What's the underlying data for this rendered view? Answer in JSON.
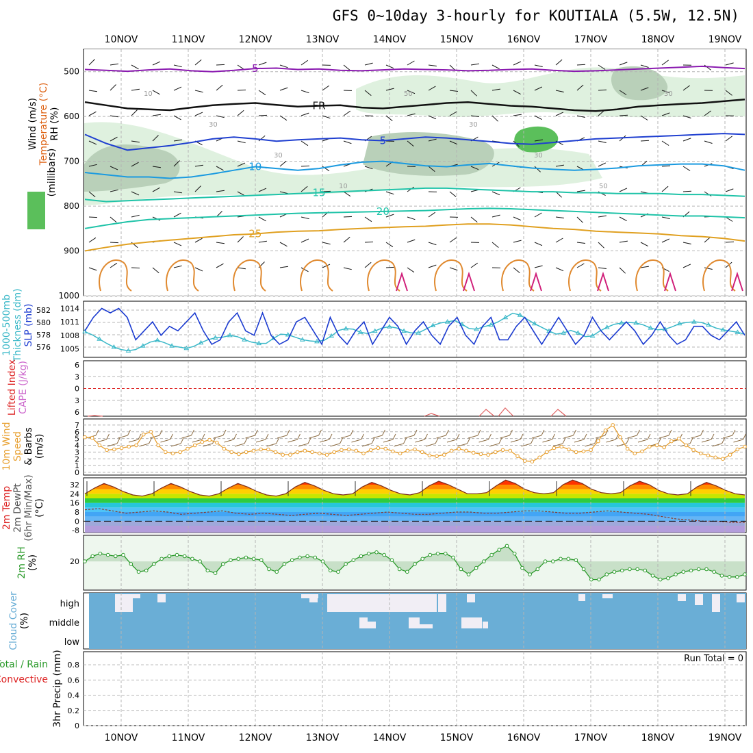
{
  "chart_data": {
    "type": "meteogram",
    "title": "GFS 0~10day 3-hourly for KOUTIALA (5.5W, 12.5N)",
    "dates": [
      "10NOV",
      "11NOV",
      "12NOV",
      "13NOV",
      "14NOV",
      "15NOV",
      "16NOV",
      "17NOV",
      "18NOV",
      "19NOV"
    ],
    "colors": {
      "grid": "#b4b4b4",
      "temp_blue": "#1f3fd0",
      "temp_cyan": "#1a9ae0",
      "temp_teal": "#1fc3a8",
      "temp_orange": "#e0a020",
      "temp_purple": "#8a1ab0",
      "thickness": "#3ab8c8",
      "slp": "#1a3ad0",
      "wind_speed": "#e8a030",
      "rh": "#2a9a2a",
      "cloud": "#6aaed6",
      "lifted": "#dd2222"
    },
    "panels": [
      {
        "id": "upper_air",
        "labels": [
          {
            "text": "Wind (m/s)",
            "color": "#000000"
          },
          {
            "text": "Temperature (°C)",
            "color": "#dd6010"
          },
          {
            "text": "RH (%)",
            "color": "#000000"
          },
          {
            "text": "(millibars)",
            "color": "#000000"
          }
        ],
        "yticks": [
          "500",
          "600",
          "700",
          "800",
          "900",
          "1000"
        ],
        "ylim": [
          1000,
          450
        ],
        "contours": [
          {
            "label": "5",
            "color": "#8a1ab0",
            "values": [
              495,
              497,
              499,
              496,
              494,
              498,
              500,
              497,
              493,
              492,
              495,
              494,
              497,
              498,
              496,
              494,
              495,
              496,
              498,
              497,
              495,
              494,
              497,
              499,
              498,
              496,
              494,
              492,
              490,
              488,
              491,
              493
            ]
          },
          {
            "label": "FR",
            "color": "#111111",
            "values": [
              568,
              575,
              582,
              584,
              586,
              580,
              575,
              572,
              570,
              574,
              578,
              576,
              575,
              580,
              582,
              578,
              574,
              570,
              568,
              572,
              576,
              578,
              582,
              586,
              588,
              584,
              578,
              575,
              572,
              570,
              566,
              562
            ]
          },
          {
            "label": "5",
            "color": "#1f3fd0",
            "values": [
              640,
              660,
              675,
              670,
              665,
              658,
              650,
              646,
              650,
              655,
              652,
              650,
              648,
              652,
              654,
              650,
              646,
              648,
              652,
              656,
              660,
              662,
              658,
              654,
              650,
              648,
              646,
              644,
              642,
              640,
              638,
              640
            ]
          },
          {
            "label": "10",
            "color": "#1a9ae0",
            "values": [
              725,
              730,
              735,
              735,
              738,
              735,
              728,
              720,
              712,
              716,
              720,
              716,
              708,
              702,
              700,
              705,
              710,
              712,
              708,
              705,
              710,
              715,
              718,
              720,
              718,
              715,
              710,
              708,
              706,
              706,
              710,
              720
            ]
          },
          {
            "label": "15",
            "color": "#1fc3a8",
            "values": [
              785,
              790,
              788,
              786,
              784,
              782,
              780,
              778,
              776,
              774,
              772,
              770,
              768,
              766,
              764,
              762,
              760,
              760,
              762,
              764,
              766,
              768,
              768,
              770,
              770,
              772,
              772,
              772,
              774,
              774,
              776,
              778
            ]
          },
          {
            "label": "20",
            "color": "#1fc3a8",
            "values": [
              850,
              842,
              835,
              830,
              828,
              826,
              824,
              822,
              820,
              818,
              816,
              815,
              814,
              813,
              812,
              811,
              810,
              808,
              806,
              805,
              806,
              808,
              810,
              812,
              814,
              816,
              818,
              820,
              822,
              822,
              824,
              826
            ]
          },
          {
            "label": "25",
            "color": "#e0a020",
            "values": [
              900,
              892,
              885,
              880,
              876,
              872,
              868,
              864,
              862,
              858,
              856,
              855,
              852,
              850,
              848,
              846,
              845,
              842,
              840,
              840,
              842,
              846,
              850,
              852,
              856,
              858,
              860,
              862,
              866,
              868,
              872,
              878
            ]
          }
        ],
        "contour_labels": [
          "10",
          "30",
          "30",
          "10",
          "50",
          "30",
          "30",
          "50",
          "30"
        ]
      },
      {
        "id": "slp_thickness",
        "labels": [
          {
            "text": "1000-500mb",
            "color": "#3ab8c8"
          },
          {
            "text": "Thickness (dm)",
            "color": "#3ab8c8"
          },
          {
            "text": "SLP (mb)",
            "color": "#1a3ad0"
          }
        ],
        "left_ticks": [
          "582",
          "580",
          "578",
          "576"
        ],
        "right_ticks": [
          "1014",
          "1011",
          "1008",
          "1005"
        ],
        "slp": [
          1009,
          1012,
          1014,
          1013,
          1014,
          1012,
          1007,
          1009,
          1011,
          1008,
          1010,
          1009,
          1011,
          1013,
          1009,
          1006,
          1007,
          1011,
          1013,
          1009,
          1008,
          1013,
          1008,
          1006,
          1007,
          1011,
          1012,
          1009,
          1006,
          1012,
          1008,
          1006,
          1009,
          1011,
          1006,
          1009,
          1012,
          1010,
          1006,
          1009,
          1011,
          1008,
          1006,
          1010,
          1012,
          1008,
          1006,
          1010,
          1012,
          1007,
          1007,
          1010,
          1012,
          1009,
          1006,
          1009,
          1012,
          1009,
          1006,
          1008,
          1012,
          1009,
          1007,
          1009,
          1011,
          1009,
          1006,
          1008,
          1011,
          1008,
          1006,
          1007,
          1010,
          1010,
          1008,
          1007,
          1009,
          1011,
          1008
        ],
        "thickness": [
          578.5,
          578,
          577.3,
          576.6,
          576,
          575.6,
          575.4,
          575.6,
          576.2,
          576.8,
          577.1,
          576.7,
          576.2,
          576,
          575.8,
          576.1,
          576.7,
          577.2,
          577.5,
          577.6,
          577.9,
          577.7,
          577.2,
          576.8,
          576.6,
          576.6,
          577.4,
          578.1,
          578,
          577.6,
          577.2,
          577,
          576.9,
          577.1,
          577.8,
          578.7,
          579,
          578.9,
          578.4,
          578.2,
          578.6,
          579.1,
          579.3,
          579.1,
          578.6,
          578.3,
          578.3,
          578.9,
          579.5,
          579.9,
          580.1,
          580.3,
          579.7,
          579,
          578.9,
          579.3,
          579.6,
          580.1,
          580.8,
          581.5,
          581.2,
          580.5,
          579.8,
          579.2,
          578.6,
          578.1,
          578.3,
          578.7,
          578.3,
          577.7,
          577.8,
          578.6,
          579.2,
          579.7,
          579.9,
          580,
          579.9,
          579.6,
          579.1,
          578.8,
          578.9,
          579.3,
          579.8,
          580,
          580.1,
          580,
          579.6,
          579.1,
          578.8,
          578.6,
          578.4,
          578.1
        ]
      },
      {
        "id": "cape_li",
        "labels": [
          {
            "text": "Lifted Index",
            "color": "#dd2222"
          },
          {
            "text": "CAPE (J/kg)",
            "color": "#cc66cc"
          }
        ],
        "ticks": [
          "6",
          "3",
          "0",
          "3",
          "6"
        ]
      },
      {
        "id": "wind10m",
        "labels": [
          {
            "text": "10m Wind",
            "color": "#e8a030"
          },
          {
            "text": "Speed",
            "color": "#e8a030"
          },
          {
            "text": "& Barbs",
            "color": "#000000"
          },
          {
            "text": "(m/s)",
            "color": "#000000"
          }
        ],
        "yticks": [
          "7",
          "6",
          "5",
          "4",
          "3",
          "2",
          "1",
          "0"
        ],
        "ylim": [
          0,
          7.5
        ],
        "values": [
          5.2,
          5.1,
          4.0,
          3.3,
          3.4,
          3.6,
          3.8,
          4.0,
          5.6,
          6.0,
          4.0,
          3.0,
          2.8,
          3.0,
          3.5,
          4.0,
          4.5,
          4.8,
          4.4,
          3.5,
          3.0,
          2.7,
          3.0,
          3.2,
          3.4,
          3.4,
          3.0,
          2.6,
          2.6,
          3.0,
          3.2,
          3.0,
          2.8,
          2.6,
          3.0,
          3.3,
          3.4,
          3.2,
          2.8,
          3.3,
          3.6,
          3.5,
          3.1,
          2.8,
          3.2,
          3.4,
          3.0,
          2.5,
          2.4,
          2.6,
          3.2,
          3.5,
          3.2,
          2.9,
          2.7,
          2.6,
          3.0,
          3.3,
          3.2,
          2.4,
          1.7,
          1.6,
          2.2,
          3.0,
          3.6,
          3.8,
          3.4,
          3.0,
          3.1,
          3.3,
          4.6,
          6.2,
          7.0,
          5.2,
          3.5,
          2.8,
          3.1,
          3.8,
          4.0,
          3.7,
          4.6,
          5.0,
          4.0,
          3.3,
          2.8,
          2.5,
          2.2,
          2.0,
          2.6,
          3.4,
          3.8
        ]
      },
      {
        "id": "temp2m",
        "labels": [
          {
            "text": "2m Temp",
            "color": "#dd2222"
          },
          {
            "text": "2m DewPt",
            "color": "#555555"
          },
          {
            "text": "(6hr Min/Max)",
            "color": "#555555"
          },
          {
            "text": "(°C)",
            "color": "#000000"
          }
        ],
        "yticks": [
          "32",
          "24",
          "16",
          "8",
          "0",
          "-8"
        ],
        "ylim": [
          -10,
          38
        ],
        "temp": [
          24,
          29,
          33,
          30,
          26,
          23,
          22,
          24,
          29,
          33,
          30,
          26,
          23,
          22,
          24,
          29,
          33,
          30,
          26,
          23,
          22,
          24,
          30,
          34,
          31,
          27,
          24,
          23,
          24,
          30,
          34,
          31,
          27,
          24,
          23,
          25,
          31,
          35,
          32,
          28,
          24,
          24,
          25,
          31,
          36,
          33,
          28,
          25,
          24,
          25,
          32,
          36,
          33,
          28,
          25,
          24,
          25,
          31,
          35,
          32,
          27,
          24,
          23,
          24,
          30,
          34,
          31,
          27,
          24,
          23
        ],
        "dew": [
          10,
          11,
          9,
          7,
          8,
          9,
          8,
          6,
          7,
          8,
          9,
          7,
          6,
          7,
          6,
          5,
          6,
          7,
          6,
          5,
          6,
          7,
          8,
          7,
          6,
          6,
          7,
          8,
          8,
          7,
          7,
          8,
          9,
          9,
          8,
          7,
          7,
          8,
          9,
          8,
          7,
          6,
          4,
          2,
          1,
          0,
          0,
          -1,
          -1
        ]
      },
      {
        "id": "rh2m",
        "labels": [
          {
            "text": "2m RH",
            "color": "#2a9a2a"
          },
          {
            "text": "(%)",
            "color": "#000000"
          }
        ],
        "yticks": [
          "20"
        ],
        "values": [
          20,
          24,
          26,
          25,
          24,
          25,
          18,
          12,
          13,
          18,
          22,
          24,
          25,
          24,
          22,
          20,
          13,
          11,
          18,
          21,
          22,
          23,
          22,
          21,
          14,
          12,
          18,
          21,
          23,
          24,
          23,
          20,
          13,
          12,
          18,
          21,
          24,
          26,
          27,
          25,
          21,
          14,
          12,
          18,
          22,
          25,
          26,
          26,
          23,
          14,
          10,
          15,
          20,
          25,
          29,
          32,
          26,
          15,
          10,
          14,
          20,
          20,
          22,
          22,
          21,
          14,
          6,
          6,
          10,
          12,
          13,
          14,
          14,
          13,
          9,
          6,
          7,
          10,
          12,
          13,
          14,
          14,
          12,
          9,
          8,
          8,
          10
        ]
      },
      {
        "id": "cloud",
        "labels": [
          {
            "text": "Cloud Cover",
            "color": "#6aaed6"
          },
          {
            "text": "(%)",
            "color": "#000000"
          }
        ],
        "levels": [
          "high",
          "middle",
          "low"
        ]
      },
      {
        "id": "precip",
        "labels": [
          {
            "text": "Total / Rain",
            "color": "#2a9a2a"
          },
          {
            "text": "Convective",
            "color": "#dd2222"
          },
          {
            "text": "3hr Precip (mm)",
            "color": "#000000"
          }
        ],
        "yticks": [
          "0.8",
          "0.6",
          "0.4",
          "0.2",
          "0"
        ],
        "ylim": [
          0,
          0.9
        ],
        "run_total": "Run Total = 0"
      }
    ]
  }
}
